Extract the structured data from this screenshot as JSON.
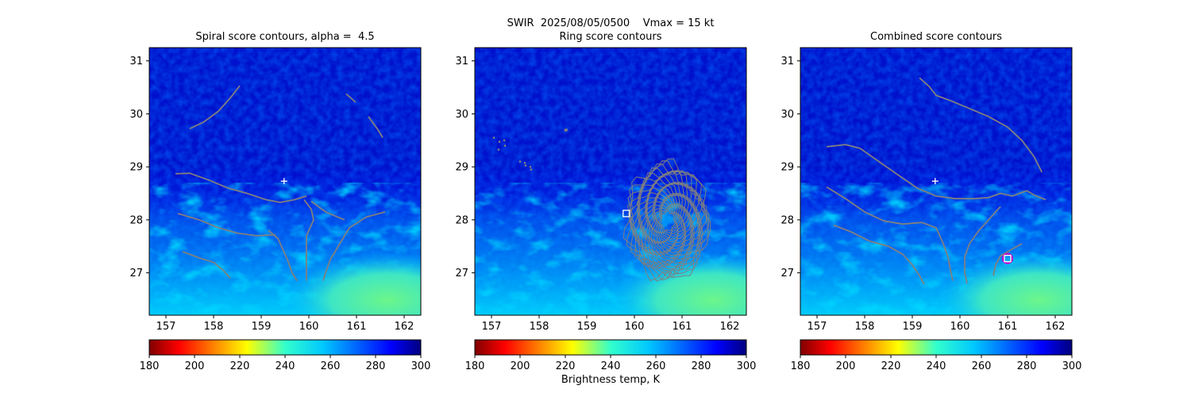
{
  "figure": {
    "suptitle": "SWIR  2025/08/05/0500    Vmax = 15 kt",
    "colorbar_label": "Brightness temp, K"
  },
  "colors": {
    "contour": "#808080",
    "background": "#ffffff",
    "colormap": "jet",
    "colormap_range_K": [
      180,
      300
    ]
  },
  "chart_data": [
    {
      "type": "heatmap",
      "title": "Spiral score contours, alpha =  4.5",
      "xlim": [
        156.65,
        162.35
      ],
      "ylim": [
        26.2,
        31.25
      ],
      "xticks": [
        157,
        158,
        159,
        160,
        161,
        162
      ],
      "yticks": [
        27,
        28,
        29,
        30,
        31
      ],
      "colorbar_ticks": [
        180,
        200,
        220,
        240,
        260,
        280,
        300
      ],
      "markers": [
        {
          "type": "plus",
          "x": 159.48,
          "y": 28.73,
          "color": "#ffffff"
        }
      ],
      "contours": [
        [
          [
            157.5,
            29.72
          ],
          [
            157.8,
            29.85
          ],
          [
            158.1,
            30.05
          ],
          [
            158.35,
            30.3
          ],
          [
            158.55,
            30.53
          ]
        ],
        [
          [
            160.78,
            30.38
          ],
          [
            160.98,
            30.22
          ]
        ],
        [
          [
            161.25,
            29.95
          ],
          [
            161.45,
            29.7
          ],
          [
            161.55,
            29.55
          ]
        ],
        [
          [
            157.2,
            28.87
          ],
          [
            157.5,
            28.88
          ],
          [
            157.9,
            28.75
          ],
          [
            158.3,
            28.6
          ],
          [
            158.7,
            28.5
          ],
          [
            159.1,
            28.38
          ],
          [
            159.4,
            28.33
          ],
          [
            159.7,
            28.38
          ],
          [
            159.95,
            28.45
          ]
        ],
        [
          [
            157.25,
            28.12
          ],
          [
            157.7,
            28.0
          ],
          [
            158.1,
            27.85
          ],
          [
            158.5,
            27.75
          ],
          [
            158.9,
            27.7
          ],
          [
            159.3,
            27.72
          ]
        ],
        [
          [
            157.35,
            27.4
          ],
          [
            157.7,
            27.28
          ],
          [
            158.0,
            27.2
          ],
          [
            158.2,
            27.05
          ],
          [
            158.35,
            26.9
          ]
        ],
        [
          [
            159.15,
            27.8
          ],
          [
            159.35,
            27.65
          ],
          [
            159.45,
            27.45
          ],
          [
            159.55,
            27.25
          ],
          [
            159.65,
            27.0
          ],
          [
            159.75,
            26.85
          ]
        ],
        [
          [
            159.9,
            28.38
          ],
          [
            160.05,
            28.2
          ],
          [
            160.1,
            28.0
          ],
          [
            159.95,
            27.7
          ],
          [
            159.95,
            27.3
          ],
          [
            159.95,
            27.0
          ],
          [
            159.95,
            26.85
          ]
        ],
        [
          [
            161.6,
            28.15
          ],
          [
            161.2,
            28.05
          ],
          [
            160.85,
            27.85
          ],
          [
            160.65,
            27.55
          ],
          [
            160.45,
            27.25
          ],
          [
            160.35,
            27.0
          ],
          [
            160.3,
            26.85
          ]
        ],
        [
          [
            160.05,
            28.35
          ],
          [
            160.35,
            28.15
          ],
          [
            160.75,
            28.0
          ]
        ]
      ]
    },
    {
      "type": "heatmap",
      "title": "Ring score contours",
      "xlim": [
        156.65,
        162.35
      ],
      "ylim": [
        26.2,
        31.25
      ],
      "xticks": [
        157,
        158,
        159,
        160,
        161,
        162
      ],
      "yticks": [
        27,
        28,
        29,
        30,
        31
      ],
      "colorbar_ticks": [
        180,
        200,
        220,
        240,
        260,
        280,
        300
      ],
      "markers": [
        {
          "type": "square",
          "x": 159.83,
          "y": 28.12,
          "color": "#ffffff"
        }
      ],
      "contour_regions": [
        {
          "center": [
            160.4,
            28.05
          ],
          "extent": [
            159.85,
            161.55,
            26.9,
            29.05
          ]
        },
        {
          "center": [
            157.2,
            29.4
          ],
          "extent": [
            157.05,
            157.3,
            29.3,
            29.55
          ]
        },
        {
          "center": [
            157.7,
            29.0
          ],
          "extent": [
            157.6,
            157.85,
            28.9,
            29.1
          ]
        },
        {
          "center": [
            158.55,
            29.7
          ],
          "extent": [
            158.55,
            158.6,
            29.7,
            29.7
          ]
        }
      ]
    },
    {
      "type": "heatmap",
      "title": "Combined score contours",
      "xlim": [
        156.65,
        162.35
      ],
      "ylim": [
        26.2,
        31.25
      ],
      "xticks": [
        157,
        158,
        159,
        160,
        161,
        162
      ],
      "yticks": [
        27,
        28,
        29,
        30,
        31
      ],
      "colorbar_ticks": [
        180,
        200,
        220,
        240,
        260,
        280,
        300
      ],
      "markers": [
        {
          "type": "plus",
          "x": 159.48,
          "y": 28.73,
          "color": "#ffffff"
        },
        {
          "type": "circle",
          "x": 161.0,
          "y": 27.27,
          "color": "#c800c8"
        },
        {
          "type": "square",
          "x": 161.0,
          "y": 27.27,
          "color": "#ffffff"
        }
      ],
      "contours": [
        [
          [
            159.15,
            30.68
          ],
          [
            159.35,
            30.52
          ],
          [
            159.5,
            30.35
          ],
          [
            159.8,
            30.25
          ],
          [
            160.2,
            30.1
          ],
          [
            160.6,
            29.95
          ],
          [
            161.0,
            29.75
          ],
          [
            161.3,
            29.5
          ],
          [
            161.55,
            29.2
          ],
          [
            161.72,
            28.9
          ]
        ],
        [
          [
            157.2,
            29.38
          ],
          [
            157.6,
            29.42
          ],
          [
            157.9,
            29.35
          ],
          [
            158.3,
            29.1
          ],
          [
            158.7,
            28.85
          ],
          [
            159.1,
            28.6
          ],
          [
            159.5,
            28.45
          ],
          [
            159.9,
            28.4
          ],
          [
            160.3,
            28.4
          ],
          [
            160.6,
            28.42
          ],
          [
            160.85,
            28.5
          ],
          [
            161.1,
            28.45
          ],
          [
            161.4,
            28.55
          ],
          [
            161.6,
            28.45
          ],
          [
            161.8,
            28.38
          ]
        ],
        [
          [
            157.2,
            28.62
          ],
          [
            157.6,
            28.4
          ],
          [
            158.0,
            28.15
          ],
          [
            158.4,
            27.98
          ],
          [
            158.8,
            27.92
          ],
          [
            159.2,
            27.95
          ],
          [
            159.5,
            27.85
          ],
          [
            159.65,
            27.55
          ],
          [
            159.75,
            27.3
          ],
          [
            159.8,
            27.05
          ],
          [
            159.85,
            26.85
          ]
        ],
        [
          [
            157.35,
            27.9
          ],
          [
            157.7,
            27.78
          ],
          [
            158.1,
            27.6
          ],
          [
            158.5,
            27.5
          ],
          [
            158.8,
            27.35
          ],
          [
            159.0,
            27.15
          ],
          [
            159.15,
            26.95
          ],
          [
            159.25,
            26.78
          ]
        ],
        [
          [
            160.85,
            28.25
          ],
          [
            160.6,
            28.0
          ],
          [
            160.4,
            27.8
          ],
          [
            160.2,
            27.55
          ],
          [
            160.1,
            27.3
          ],
          [
            160.1,
            27.0
          ],
          [
            160.15,
            26.8
          ]
        ],
        [
          [
            160.7,
            26.95
          ],
          [
            160.75,
            27.15
          ],
          [
            160.85,
            27.32
          ],
          [
            161.1,
            27.45
          ],
          [
            161.3,
            27.55
          ]
        ]
      ]
    }
  ]
}
